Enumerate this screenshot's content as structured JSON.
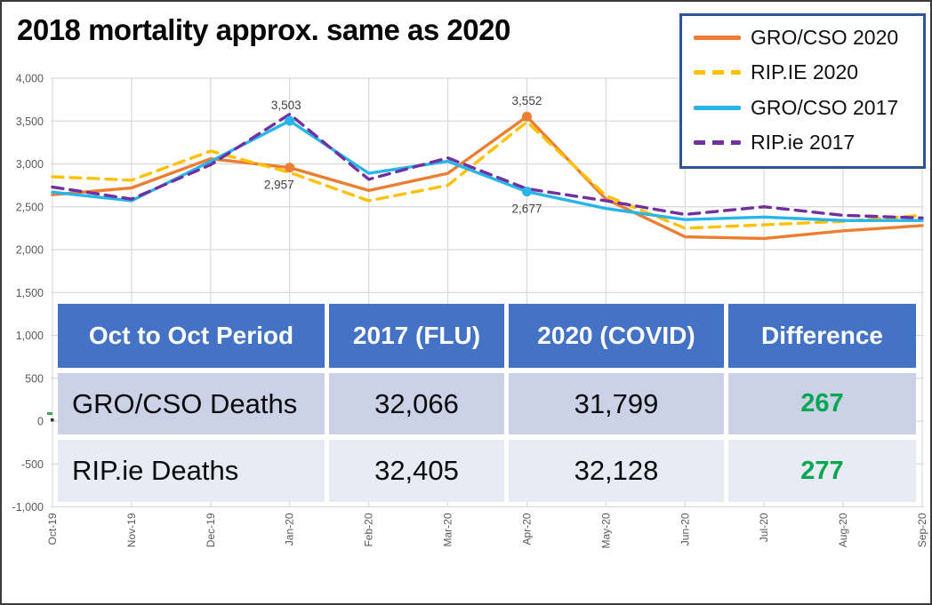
{
  "slide": {
    "title": "2018 mortality approx. same as 2020",
    "background": "#FFFFFF",
    "border_color": "#3B3B3B"
  },
  "chart_data": {
    "type": "line",
    "title": "",
    "xlabel": "",
    "ylabel": "",
    "categories": [
      "Oct-19",
      "Nov-19",
      "Dec-19",
      "Jan-20",
      "Feb-20",
      "Mar-20",
      "Apr-20",
      "May-20",
      "Jun-20",
      "Jul-20",
      "Aug-20",
      "Sep-20"
    ],
    "series": [
      {
        "name": "GRO/CSO 2020",
        "color": "#ED7D31",
        "style": "solid",
        "values": [
          2640,
          2720,
          3060,
          2957,
          2690,
          2890,
          3552,
          2590,
          2150,
          2130,
          2220,
          2280
        ]
      },
      {
        "name": "RIP.IE 2020",
        "color": "#FFC000",
        "style": "dashed",
        "values": [
          2850,
          2810,
          3150,
          2900,
          2570,
          2750,
          3490,
          2630,
          2250,
          2290,
          2330,
          2400
        ]
      },
      {
        "name": "GRO/CSO 2017",
        "color": "#27B5EA",
        "style": "solid",
        "values": [
          2670,
          2570,
          3030,
          3503,
          2890,
          3030,
          2677,
          2480,
          2350,
          2380,
          2340,
          2340
        ]
      },
      {
        "name": "RIP.ie 2017",
        "color": "#7030A0",
        "style": "dashed",
        "values": [
          2730,
          2590,
          2990,
          3580,
          2820,
          3070,
          2710,
          2570,
          2410,
          2500,
          2400,
          2370
        ]
      }
    ],
    "ylim": [
      -1000,
      4000
    ],
    "ytick_step": 500,
    "yticks": [
      4000,
      3500,
      3000,
      2500,
      2000,
      1500,
      1000,
      500,
      0,
      -500,
      -1000
    ],
    "ytick_labels": [
      "4,000",
      "3,500",
      "3,000",
      "2,500",
      "2,000",
      "1,500",
      "1,000",
      "500",
      "0",
      "-500",
      "-1,000"
    ],
    "grid": true,
    "grid_color": "#D9D9D9",
    "axis_text_color": "#595959",
    "point_label_color": "#404040",
    "legend_position": "top-right",
    "point_labels": [
      {
        "series": "GRO/CSO 2017",
        "category": "Jan-20",
        "value": 3503,
        "label": "3,503",
        "position": "above",
        "dx": -4
      },
      {
        "series": "GRO/CSO 2020",
        "category": "Jan-20",
        "value": 2957,
        "label": "2,957",
        "position": "below",
        "dx": -12
      },
      {
        "series": "GRO/CSO 2020",
        "category": "Apr-20",
        "value": 3552,
        "label": "3,552",
        "position": "above",
        "dx": 0
      },
      {
        "series": "GRO/CSO 2017",
        "category": "Apr-20",
        "value": 2677,
        "label": "2,677",
        "position": "below",
        "dx": 0
      }
    ]
  },
  "legend": {
    "border_color": "#2E5496"
  },
  "table": {
    "headers": [
      "Oct to Oct Period",
      "2017 (FLU)",
      "2020 (COVID)",
      "Difference"
    ],
    "rows": [
      {
        "label": "GRO/CSO Deaths",
        "flu": "32,066",
        "covid": "31,799",
        "difference": "267"
      },
      {
        "label": "RIP.ie Deaths",
        "flu": "32,405",
        "covid": "32,128",
        "difference": "277"
      }
    ],
    "header_bg": "#4472C4",
    "header_text_color": "#FFFFFF",
    "row_bg_odd": "#CBD1E6",
    "row_bg_even": "#E8EAF4",
    "difference_color": "#00A651"
  }
}
